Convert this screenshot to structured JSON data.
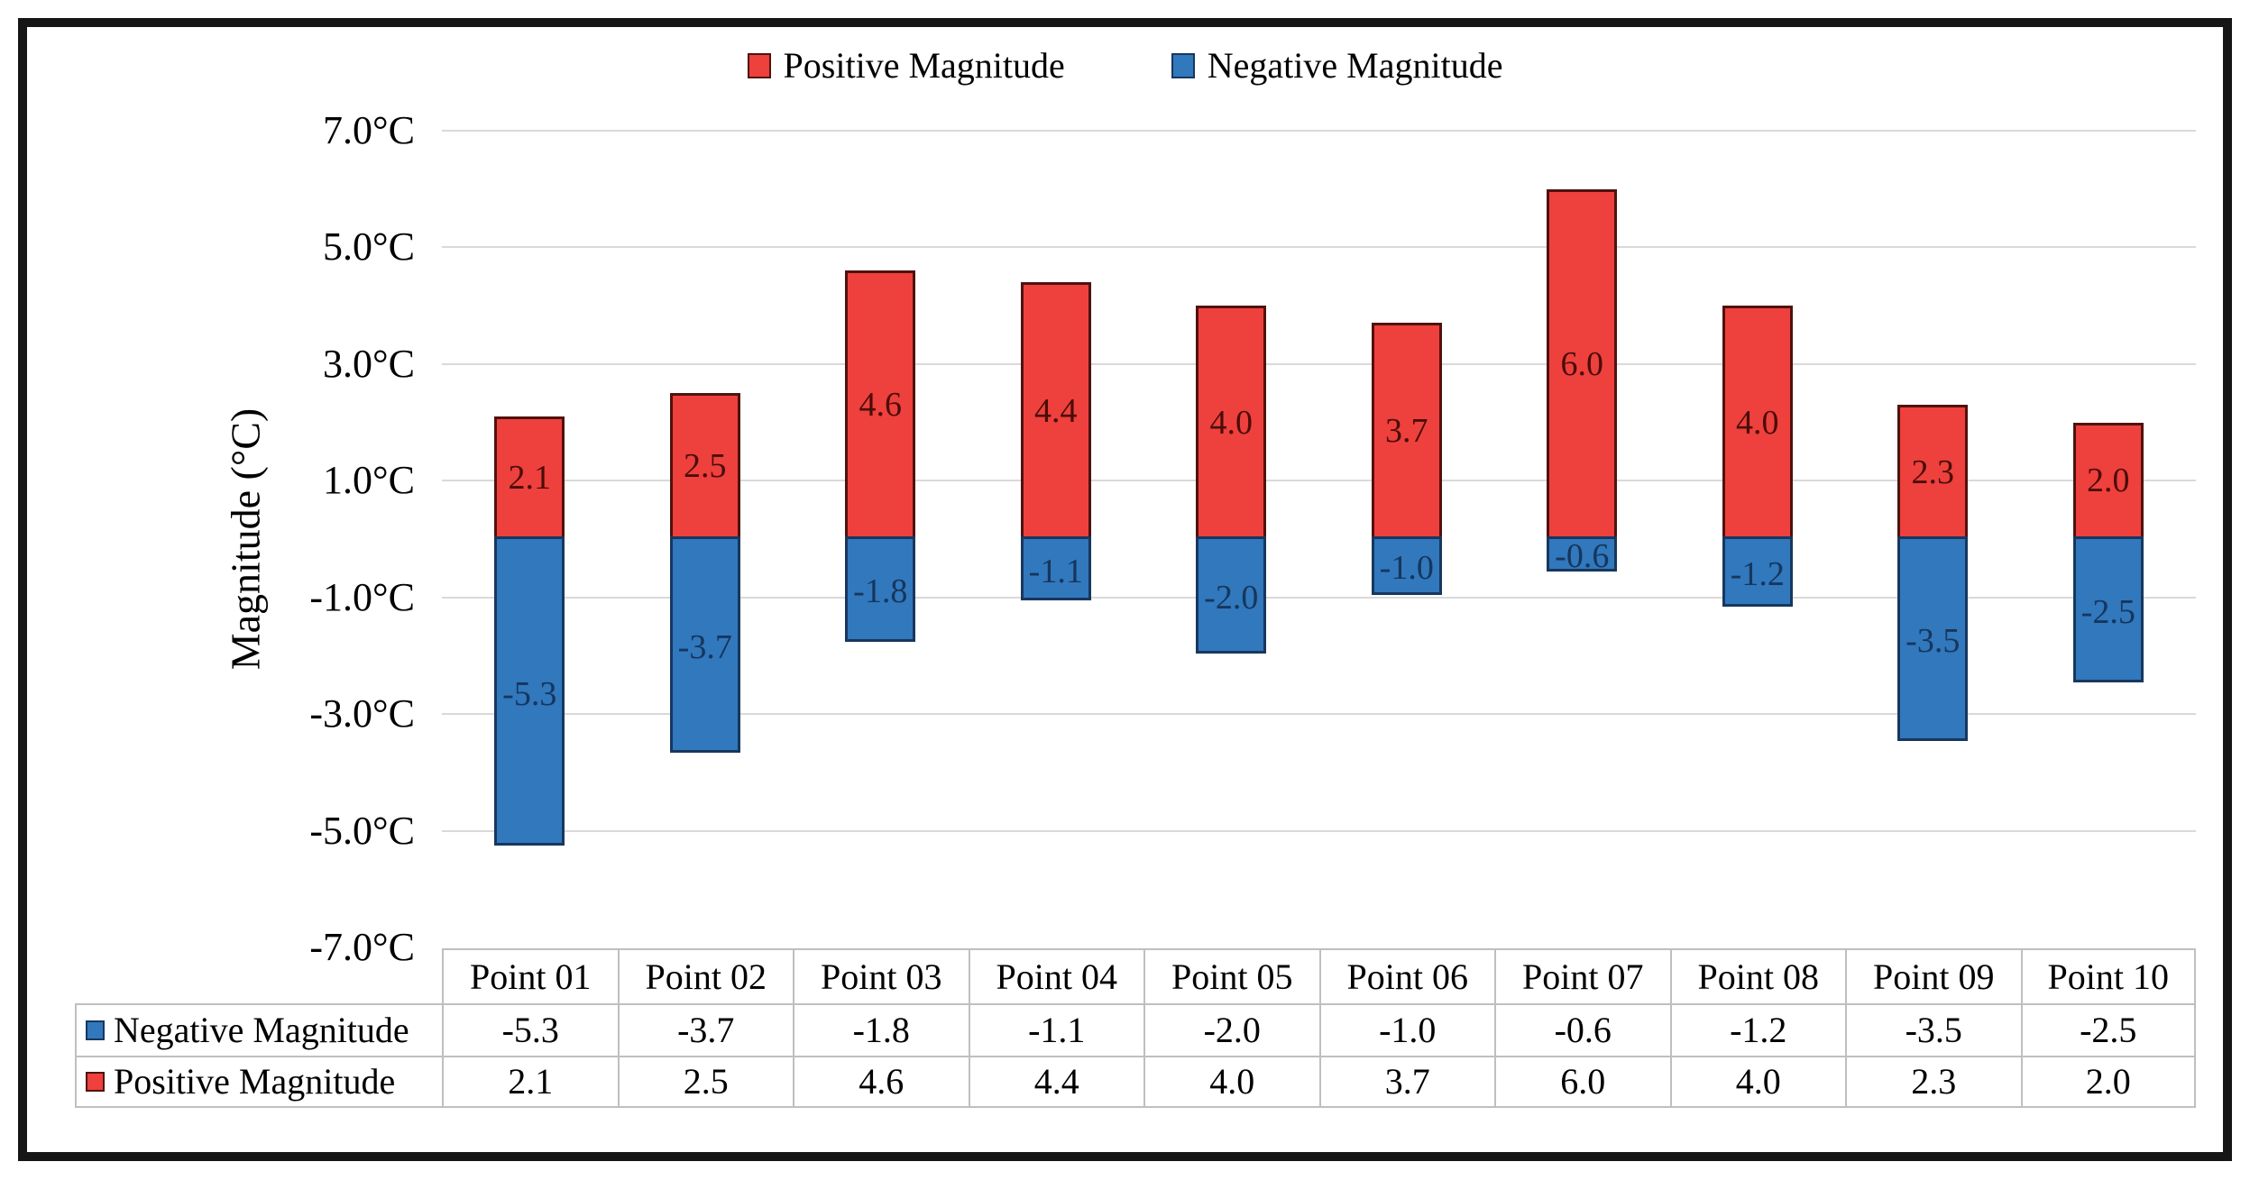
{
  "legend": {
    "items": [
      {
        "label": "Positive Magnitude",
        "fill": "#EE403D",
        "border": "#4F120E"
      },
      {
        "label": "Negative Magnitude",
        "fill": "#3178BD",
        "border": "#17375E"
      }
    ]
  },
  "y_axis": {
    "title": "Magnitude (°C)",
    "tick_labels": [
      "7.0°C",
      "5.0°C",
      "3.0°C",
      "1.0°C",
      "-1.0°C",
      "-3.0°C",
      "-5.0°C",
      "-7.0°C"
    ],
    "tick_values": [
      7,
      5,
      3,
      1,
      -1,
      -3,
      -5,
      -7
    ]
  },
  "chart_data": {
    "type": "bar",
    "stacked": true,
    "title": "",
    "xlabel": "",
    "ylabel": "Magnitude (°C)",
    "ylim": [
      -7,
      7
    ],
    "grid": true,
    "gridline_color": "#D9D9D9",
    "legend_position": "top",
    "categories": [
      "Point 01",
      "Point 02",
      "Point 03",
      "Point 04",
      "Point 05",
      "Point 06",
      "Point 07",
      "Point 08",
      "Point 09",
      "Point 10"
    ],
    "series": [
      {
        "name": "Positive Magnitude",
        "color": "#EE403D",
        "border_color": "#4F120E",
        "label_color": "#4A0D08",
        "values": [
          2.1,
          2.5,
          4.6,
          4.4,
          4.0,
          3.7,
          6.0,
          4.0,
          2.3,
          2.0
        ]
      },
      {
        "name": "Negative Magnitude",
        "color": "#3178BD",
        "border_color": "#17375E",
        "label_color": "#16365D",
        "values": [
          -5.3,
          -3.7,
          -1.8,
          -1.1,
          -2.0,
          -1.0,
          -0.6,
          -1.2,
          -3.5,
          -2.5
        ]
      }
    ]
  },
  "table": {
    "border_color": "#BFBFBF",
    "header": [
      "",
      "Point 01",
      "Point 02",
      "Point 03",
      "Point 04",
      "Point 05",
      "Point 06",
      "Point 07",
      "Point 08",
      "Point 09",
      "Point 10"
    ],
    "rows": [
      {
        "label": "Negative Magnitude",
        "swatch_fill": "#3178BD",
        "swatch_border": "#17375E",
        "values": [
          "-5.3",
          "-3.7",
          "-1.8",
          "-1.1",
          "-2.0",
          "-1.0",
          "-0.6",
          "-1.2",
          "-3.5",
          "-2.5"
        ]
      },
      {
        "label": "Positive Magnitude",
        "swatch_fill": "#EE403D",
        "swatch_border": "#4F120E",
        "values": [
          "2.1",
          "2.5",
          "4.6",
          "4.4",
          "4.0",
          "3.7",
          "6.0",
          "4.0",
          "2.3",
          "2.0"
        ]
      }
    ]
  }
}
